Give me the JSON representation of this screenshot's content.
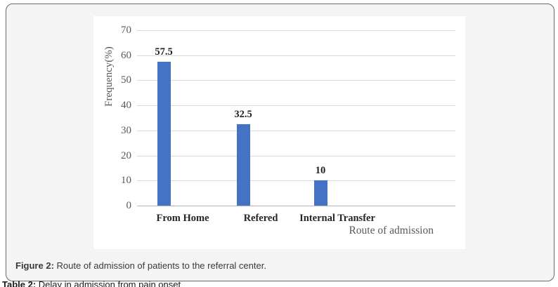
{
  "chart_data": {
    "type": "bar",
    "categories": [
      "From Home",
      "Refered",
      "Internal Transfer"
    ],
    "values": [
      57.5,
      32.5,
      10
    ],
    "data_labels": [
      "57.5",
      "32.5",
      "10"
    ],
    "xlabel": "Route of admission",
    "ylabel": "Frequency(%)",
    "ylim": [
      0,
      70
    ],
    "yticks": [
      "70",
      "60",
      "50",
      "40",
      "30",
      "20",
      "10",
      "0"
    ],
    "grid": "horizontal gridlines on",
    "legend": "none",
    "bar_color": "#4472C4",
    "gridline_color": "#d9d9d9",
    "axis_line_color": "#b3b3b3"
  },
  "figure_caption": {
    "prefix": "Figure 2:",
    "text": " Route of admission of patients to the referral center."
  },
  "table_caption": {
    "prefix": "Table 2:",
    "text": " Delay in admission from pain onset"
  }
}
